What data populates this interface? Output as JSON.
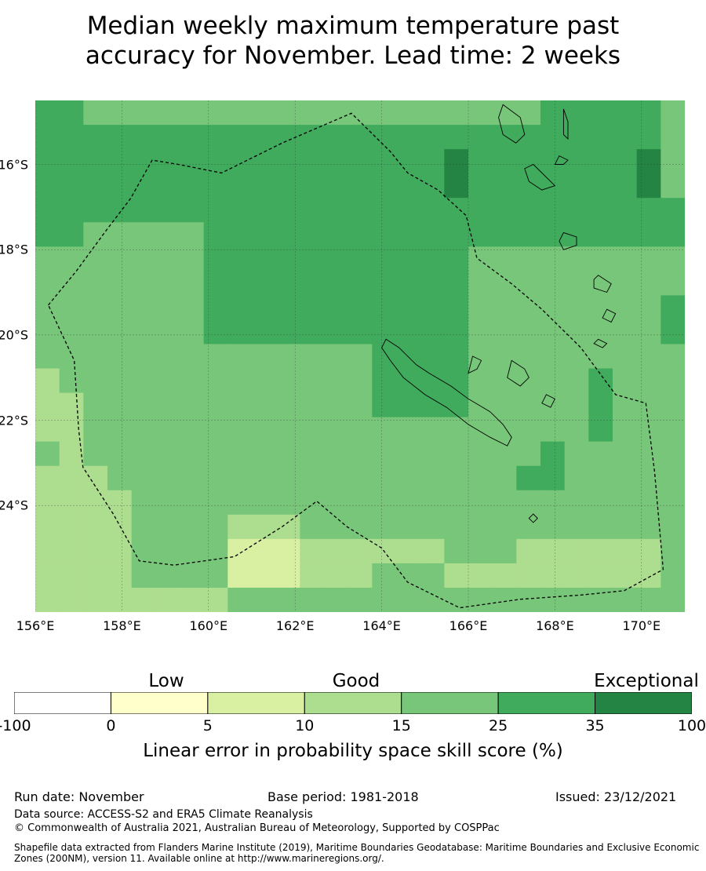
{
  "title_line1": "Median weekly maximum temperature past",
  "title_line2": "accuracy for November. Lead time: 2 weeks",
  "map": {
    "lon_range": [
      156,
      171
    ],
    "lat_range": [
      -26.5,
      -14.5
    ],
    "lat_ticks": [
      {
        "value": -16,
        "label": "16°S"
      },
      {
        "value": -18,
        "label": "18°S"
      },
      {
        "value": -20,
        "label": "20°S"
      },
      {
        "value": -22,
        "label": "22°S"
      },
      {
        "value": -24,
        "label": "24°S"
      }
    ],
    "lon_ticks": [
      {
        "value": 156,
        "label": "156°E"
      },
      {
        "value": 158,
        "label": "158°E"
      },
      {
        "value": 160,
        "label": "160°E"
      },
      {
        "value": 162,
        "label": "162°E"
      },
      {
        "value": 164,
        "label": "164°E"
      },
      {
        "value": 166,
        "label": "166°E"
      },
      {
        "value": 168,
        "label": "168°E"
      },
      {
        "value": 170,
        "label": "170°E"
      }
    ],
    "grid_cols": 27,
    "grid_rows": 21,
    "class_colors": [
      "#ffffff",
      "#ffffcc",
      "#d9f0a3",
      "#addd8e",
      "#78c679",
      "#41ab5d",
      "#238443"
    ],
    "skill_grid": [
      "554444444444444444444555554",
      "555555555555555555555555554",
      "555555555555555556555555564",
      "555555555555555556555555564",
      "555555555555555555555555555",
      "554444455555555555555555555",
      "444444455555555555444444444",
      "444444455555555555444444444",
      "444444455555555555444444445",
      "444444455555555555444444445",
      "444444444444445555444444444",
      "344444444444445555444445444",
      "334444444444445555444445444",
      "334444444444444444444445444",
      "434444444444444444444544444",
      "333444444444444444445544444",
      "333344444444444444444444444",
      "333344443334444444444444444",
      "333344442223333334443333334",
      "333344442223334443333333334",
      "333333334444444444444444444"
    ],
    "eez_outline": [
      [
        156.3,
        -19.3
      ],
      [
        156.95,
        -18.5
      ],
      [
        157.6,
        -17.6
      ],
      [
        158.2,
        -16.8
      ],
      [
        158.7,
        -15.9
      ],
      [
        159.3,
        -16.0
      ],
      [
        160.3,
        -16.2
      ],
      [
        161.7,
        -15.5
      ],
      [
        163.3,
        -14.8
      ],
      [
        164.2,
        -15.7
      ],
      [
        164.6,
        -16.2
      ],
      [
        165.3,
        -16.6
      ],
      [
        165.95,
        -17.2
      ],
      [
        166.2,
        -18.2
      ],
      [
        167.0,
        -18.8
      ],
      [
        167.7,
        -19.4
      ],
      [
        168.6,
        -20.3
      ],
      [
        169.4,
        -21.4
      ],
      [
        170.1,
        -21.6
      ],
      [
        170.3,
        -23.2
      ],
      [
        170.5,
        -25.5
      ],
      [
        169.6,
        -26.0
      ],
      [
        168.6,
        -26.1
      ],
      [
        167.2,
        -26.2
      ],
      [
        165.8,
        -26.4
      ],
      [
        164.6,
        -25.8
      ],
      [
        164.0,
        -25.0
      ],
      [
        163.2,
        -24.5
      ],
      [
        162.5,
        -23.9
      ],
      [
        161.7,
        -24.5
      ],
      [
        160.6,
        -25.2
      ],
      [
        159.2,
        -25.4
      ],
      [
        158.4,
        -25.3
      ],
      [
        157.8,
        -24.2
      ],
      [
        157.1,
        -23.1
      ],
      [
        157.0,
        -22.2
      ],
      [
        156.9,
        -20.6
      ],
      [
        156.3,
        -19.3
      ]
    ],
    "coastlines": [
      [
        [
          164.1,
          -20.1
        ],
        [
          164.4,
          -20.3
        ],
        [
          164.8,
          -20.7
        ],
        [
          165.1,
          -20.9
        ],
        [
          165.6,
          -21.2
        ],
        [
          166.0,
          -21.5
        ],
        [
          166.5,
          -21.8
        ],
        [
          166.8,
          -22.1
        ],
        [
          167.0,
          -22.4
        ],
        [
          166.9,
          -22.6
        ],
        [
          166.5,
          -22.4
        ],
        [
          166.0,
          -22.1
        ],
        [
          165.5,
          -21.7
        ],
        [
          165.0,
          -21.4
        ],
        [
          164.5,
          -21.0
        ],
        [
          164.2,
          -20.6
        ],
        [
          164.0,
          -20.3
        ],
        [
          164.1,
          -20.1
        ]
      ],
      [
        [
          166.8,
          -14.6
        ],
        [
          167.2,
          -14.9
        ],
        [
          167.3,
          -15.3
        ],
        [
          167.1,
          -15.5
        ],
        [
          166.8,
          -15.3
        ],
        [
          166.7,
          -14.9
        ],
        [
          166.8,
          -14.6
        ]
      ],
      [
        [
          167.5,
          -16.0
        ],
        [
          167.8,
          -16.3
        ],
        [
          168.0,
          -16.5
        ],
        [
          167.7,
          -16.6
        ],
        [
          167.4,
          -16.4
        ],
        [
          167.3,
          -16.1
        ],
        [
          167.5,
          -16.0
        ]
      ],
      [
        [
          168.2,
          -17.6
        ],
        [
          168.5,
          -17.7
        ],
        [
          168.5,
          -17.9
        ],
        [
          168.2,
          -18.0
        ],
        [
          168.1,
          -17.8
        ],
        [
          168.2,
          -17.6
        ]
      ],
      [
        [
          169.0,
          -18.6
        ],
        [
          169.3,
          -18.8
        ],
        [
          169.2,
          -19.0
        ],
        [
          168.9,
          -18.9
        ],
        [
          168.9,
          -18.7
        ],
        [
          169.0,
          -18.6
        ]
      ],
      [
        [
          169.2,
          -19.4
        ],
        [
          169.4,
          -19.5
        ],
        [
          169.3,
          -19.7
        ],
        [
          169.1,
          -19.6
        ],
        [
          169.2,
          -19.4
        ]
      ],
      [
        [
          169.0,
          -20.1
        ],
        [
          169.2,
          -20.2
        ],
        [
          169.1,
          -20.3
        ],
        [
          168.9,
          -20.2
        ],
        [
          169.0,
          -20.1
        ]
      ],
      [
        [
          167.0,
          -20.6
        ],
        [
          167.3,
          -20.8
        ],
        [
          167.4,
          -21.0
        ],
        [
          167.2,
          -21.2
        ],
        [
          166.9,
          -21.0
        ],
        [
          167.0,
          -20.6
        ]
      ],
      [
        [
          166.1,
          -20.5
        ],
        [
          166.3,
          -20.6
        ],
        [
          166.2,
          -20.8
        ],
        [
          166.0,
          -20.9
        ],
        [
          166.1,
          -20.5
        ]
      ],
      [
        [
          167.8,
          -21.4
        ],
        [
          168.0,
          -21.5
        ],
        [
          167.9,
          -21.7
        ],
        [
          167.7,
          -21.6
        ],
        [
          167.8,
          -21.4
        ]
      ],
      [
        [
          168.1,
          -15.8
        ],
        [
          168.3,
          -15.9
        ],
        [
          168.2,
          -16.0
        ],
        [
          168.0,
          -16.0
        ],
        [
          168.1,
          -15.8
        ]
      ],
      [
        [
          168.2,
          -14.7
        ],
        [
          168.3,
          -15.0
        ],
        [
          168.3,
          -15.4
        ],
        [
          168.2,
          -15.3
        ],
        [
          168.2,
          -14.7
        ]
      ],
      [
        [
          167.5,
          -24.2
        ],
        [
          167.6,
          -24.3
        ],
        [
          167.5,
          -24.4
        ],
        [
          167.4,
          -24.3
        ],
        [
          167.5,
          -24.2
        ]
      ]
    ]
  },
  "colorbar": {
    "category_labels": [
      {
        "label": "Low",
        "position": 0.225
      },
      {
        "label": "Good",
        "position": 0.504
      },
      {
        "label": "Exceptional",
        "position": 0.932
      }
    ],
    "ticks": [
      "-100",
      "0",
      "5",
      "10",
      "15",
      "25",
      "35",
      "100"
    ],
    "colors": [
      "#ffffff",
      "#ffffcc",
      "#d9f0a3",
      "#addd8e",
      "#78c679",
      "#41ab5d",
      "#238443"
    ],
    "title": "Linear error in probability space skill score (%)"
  },
  "footer": {
    "run_date": "Run date: November",
    "base_period": "Base period: 1981-2018",
    "issued": "Issued: 23/12/2021",
    "data_source": "Data source: ACCESS-S2 and ERA5 Climate Reanalysis",
    "copyright": "© Commonwealth of Australia 2021, Australian Bureau of Meteorology, Supported by COSPPac",
    "shapefile_line1": "Shapefile data extracted from Flanders Marine Institute (2019), Maritime Boundaries Geodatabase: Maritime Boundaries and Exclusive Economic",
    "shapefile_line2": "Zones (200NM), version 11. Available online at http://www.marineregions.org/."
  }
}
